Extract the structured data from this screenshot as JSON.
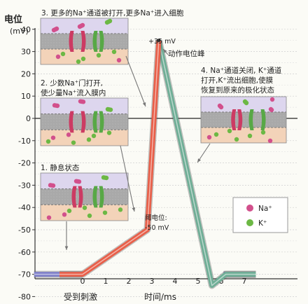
{
  "yaxis": {
    "title": "电位",
    "unit": "(mV)",
    "ticks": [
      "40",
      "30",
      "20",
      "10",
      "0",
      "-10",
      "-20",
      "-30",
      "-40",
      "-50",
      "-60",
      "-70",
      "-80"
    ]
  },
  "xaxis": {
    "ticks": [
      "0",
      "1",
      "2",
      "3",
      "4",
      "5",
      "6",
      "7"
    ],
    "stimulus_label": "受到刺激",
    "time_label": "时间/ms"
  },
  "annotations": {
    "peak_value": "+35 mV",
    "peak_label": "动作电位峰",
    "threshold_label": "阈电位:",
    "threshold_value": "-50 mV"
  },
  "steps": [
    {
      "line1": "1. 静息状态",
      "line2": ""
    },
    {
      "line1": "2. 少数Na⁺门打开,",
      "line2": "使少量Na⁺流入膜内"
    },
    {
      "line1": "3. 更多的Na⁺通道被打开,更多Na⁺进入细胞",
      "line2": ""
    },
    {
      "line1": "4. Na⁺通道关闭, K⁺通道",
      "line2": "打开,K⁺流出细胞,使膜",
      "line3": "恢复到原来的极化状态"
    }
  ],
  "legend": {
    "na": "Na⁺",
    "k": "K⁺"
  },
  "colors": {
    "depolarization": "#e8604a",
    "repolarization": "#6fae96",
    "resting": "#7f80c8",
    "na_ion": "#d2508c",
    "k_ion": "#6cb844",
    "na_channel": "#cc3b63",
    "k_channel": "#58a846"
  },
  "chart_data": {
    "type": "line",
    "x_unit": "ms",
    "y_unit": "mV",
    "ylim": [
      -80,
      40
    ],
    "xlim": [
      -1,
      7.5
    ],
    "grid": true,
    "series": [
      {
        "x": [
          -1,
          0,
          2.8,
          3.3
        ],
        "y": [
          -70,
          -70,
          -50,
          35
        ]
      },
      {
        "x": [
          3.3,
          5.6,
          6.2,
          7.5
        ],
        "y": [
          35,
          -75,
          -70,
          -70
        ]
      }
    ]
  }
}
